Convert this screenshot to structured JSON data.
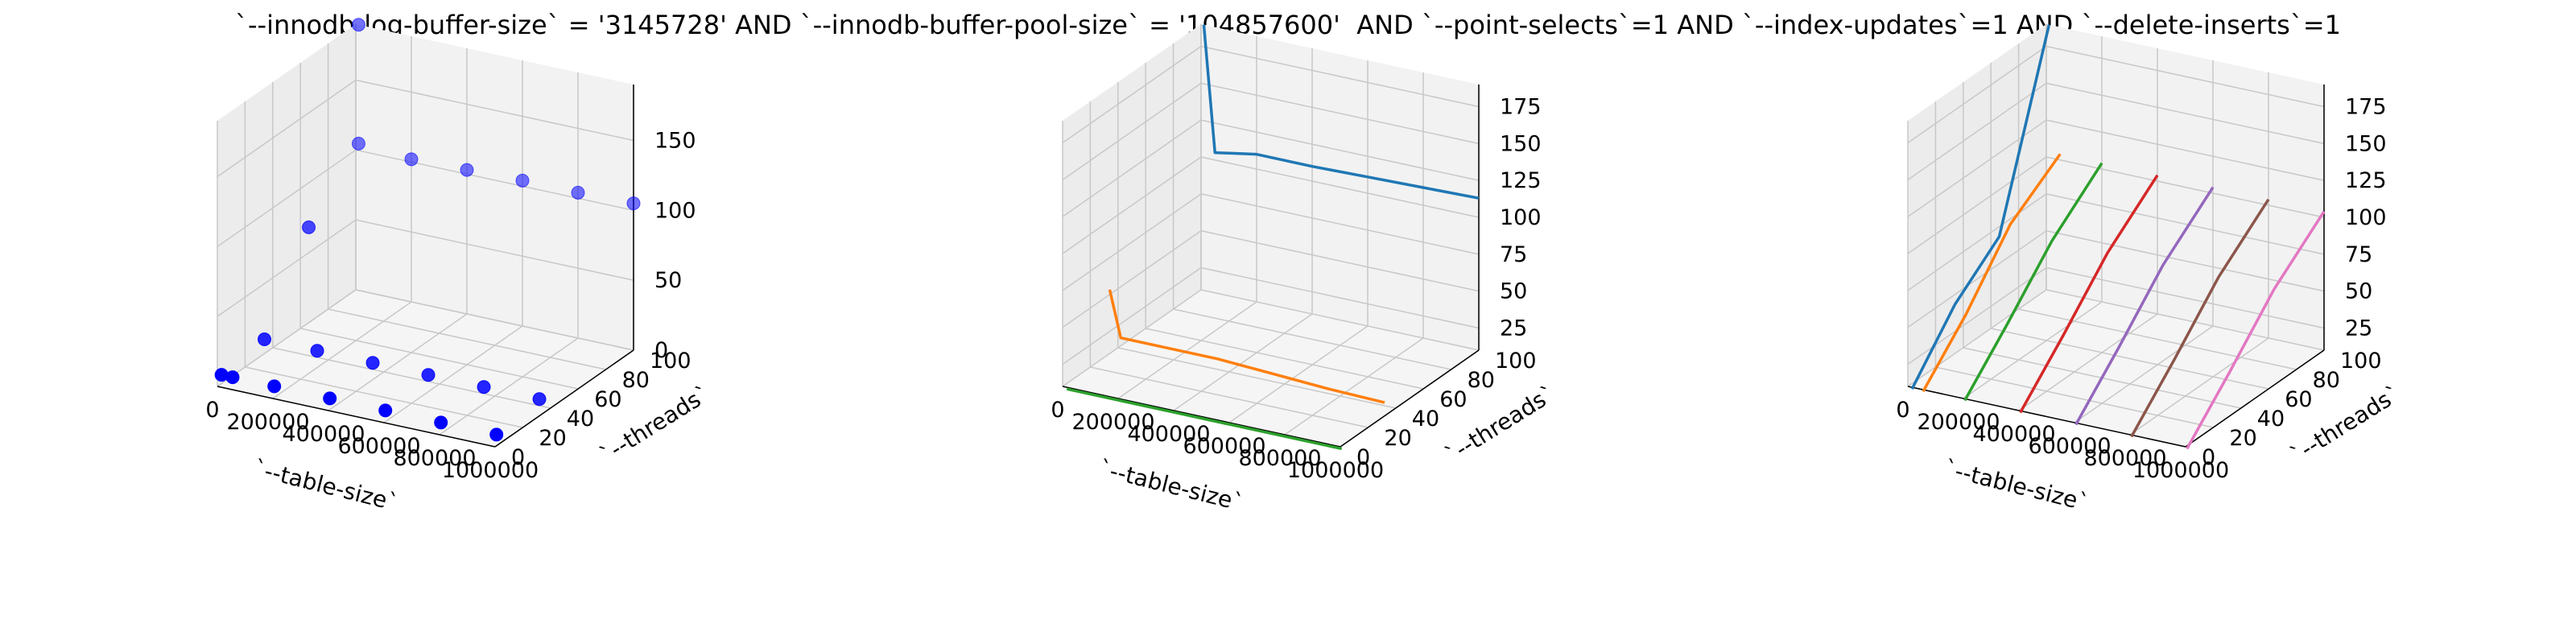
{
  "title": "`--innodb-log-buffer-size` = '3145728' AND `--innodb-buffer-pool-size` = '104857600'  AND `--point-selects`=1 AND `--index-updates`=1 AND `--delete-inserts`=1",
  "chart_data": [
    {
      "type": "scatter3d",
      "xlabel": "`--table-size`",
      "ylabel": "`--threads`",
      "zlabel": "",
      "xlim": [
        0,
        1000000
      ],
      "ylim": [
        0,
        100
      ],
      "zlim": [
        0,
        190
      ],
      "xticks": [
        0,
        200000,
        400000,
        600000,
        800000,
        1000000
      ],
      "yticks": [
        0,
        20,
        40,
        60,
        80,
        100
      ],
      "zticks": [
        0,
        50,
        100,
        150
      ],
      "colors": {
        "points": "#0000ff"
      },
      "points": [
        {
          "x": 10000,
          "y": 1,
          "z": 8
        },
        {
          "x": 50000,
          "y": 1,
          "z": 8
        },
        {
          "x": 200000,
          "y": 1,
          "z": 8
        },
        {
          "x": 400000,
          "y": 1,
          "z": 8
        },
        {
          "x": 600000,
          "y": 1,
          "z": 8
        },
        {
          "x": 800000,
          "y": 1,
          "z": 8
        },
        {
          "x": 1000000,
          "y": 1,
          "z": 8
        },
        {
          "x": 10000,
          "y": 32,
          "z": 12
        },
        {
          "x": 200000,
          "y": 32,
          "z": 12
        },
        {
          "x": 400000,
          "y": 32,
          "z": 12
        },
        {
          "x": 600000,
          "y": 32,
          "z": 12
        },
        {
          "x": 800000,
          "y": 32,
          "z": 12
        },
        {
          "x": 1000000,
          "y": 32,
          "z": 12
        },
        {
          "x": 10000,
          "y": 64,
          "z": 70
        },
        {
          "x": 10000,
          "y": 100,
          "z": 105
        },
        {
          "x": 200000,
          "y": 100,
          "z": 102
        },
        {
          "x": 400000,
          "y": 100,
          "z": 103
        },
        {
          "x": 600000,
          "y": 100,
          "z": 104
        },
        {
          "x": 800000,
          "y": 100,
          "z": 104
        },
        {
          "x": 1000000,
          "y": 100,
          "z": 105
        },
        {
          "x": 10000,
          "y": 100,
          "z": 190
        }
      ]
    },
    {
      "type": "line3d",
      "xlabel": "`--table-size`",
      "ylabel": "`--threads`",
      "zlabel": "",
      "xlim": [
        0,
        1000000
      ],
      "ylim": [
        0,
        100
      ],
      "zlim": [
        10,
        190
      ],
      "xticks": [
        0,
        200000,
        400000,
        600000,
        800000,
        1000000
      ],
      "yticks": [
        0,
        20,
        40,
        60,
        80,
        100
      ],
      "zticks": [
        25,
        50,
        75,
        100,
        125,
        150,
        175
      ],
      "series": [
        {
          "color": "#1f77b4",
          "y": 100,
          "x": [
            10000,
            50000,
            200000,
            400000,
            600000,
            800000,
            1000000
          ],
          "z": [
            190,
            105,
            110,
            110,
            111,
            112,
            113
          ]
        },
        {
          "color": "#ff7f0e",
          "y": 32,
          "x": [
            10000,
            50000,
            200000,
            400000,
            600000,
            800000,
            1000000
          ],
          "z": [
            55,
            24,
            24,
            24,
            22,
            20,
            19
          ]
        },
        {
          "color": "#2ca02c",
          "y": 1,
          "x": [
            10000,
            50000,
            200000,
            400000,
            600000,
            800000,
            1000000
          ],
          "z": [
            8,
            8,
            8,
            8,
            8,
            8,
            8
          ]
        }
      ]
    },
    {
      "type": "line3d",
      "xlabel": "`--table-size`",
      "ylabel": "`--threads`",
      "zlabel": "",
      "xlim": [
        0,
        1000000
      ],
      "ylim": [
        0,
        100
      ],
      "zlim": [
        10,
        190
      ],
      "xticks": [
        0,
        200000,
        400000,
        600000,
        800000,
        1000000
      ],
      "yticks": [
        0,
        20,
        40,
        60,
        80,
        100
      ],
      "zticks": [
        25,
        50,
        75,
        100,
        125,
        150,
        175
      ],
      "series": [
        {
          "color": "#1f77b4",
          "x": 10000,
          "y": [
            1,
            32,
            64,
            100
          ],
          "z": [
            8,
            45,
            70,
            190
          ]
        },
        {
          "color": "#ff7f0e",
          "x": 50000,
          "y": [
            1,
            32,
            64,
            100
          ],
          "z": [
            8,
            40,
            80,
            104
          ]
        },
        {
          "color": "#2ca02c",
          "x": 200000,
          "y": [
            1,
            32,
            64,
            100
          ],
          "z": [
            8,
            40,
            75,
            104
          ]
        },
        {
          "color": "#d62728",
          "x": 400000,
          "y": [
            1,
            32,
            64,
            100
          ],
          "z": [
            8,
            40,
            75,
            104
          ]
        },
        {
          "color": "#9467bd",
          "x": 600000,
          "y": [
            1,
            32,
            64,
            100
          ],
          "z": [
            8,
            40,
            75,
            104
          ]
        },
        {
          "color": "#8c564b",
          "x": 800000,
          "y": [
            1,
            32,
            64,
            100
          ],
          "z": [
            8,
            40,
            75,
            104
          ]
        },
        {
          "color": "#e377c2",
          "x": 1000000,
          "y": [
            1,
            32,
            64,
            100
          ],
          "z": [
            8,
            40,
            75,
            104
          ]
        }
      ]
    }
  ]
}
